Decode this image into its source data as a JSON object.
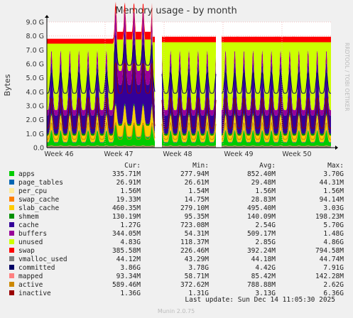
{
  "chart_data": {
    "type": "area",
    "title": "Memory usage - by month",
    "ylabel": "Bytes",
    "ylim": [
      0,
      9.0
    ],
    "yunit": "G",
    "y_ticks": [
      "0.0",
      "1.0 G",
      "2.0 G",
      "3.0 G",
      "4.0 G",
      "5.0 G",
      "6.0 G",
      "7.0 G",
      "8.0 G",
      "9.0 G"
    ],
    "x_ticks": [
      "Week 46",
      "Week 47",
      "Week 48",
      "Week 49",
      "Week 50"
    ],
    "side_text": "RRDTOOL / TOBI OETIKER",
    "footer": "Munin 2.0.75",
    "last_update": "Last update: Sun Dec 14 11:05:30 2025",
    "columns": [
      "Cur:",
      "Min:",
      "Avg:",
      "Max:"
    ],
    "series": [
      {
        "name": "apps",
        "color": "#00cc00",
        "values": [
          "335.71M",
          "277.94M",
          "852.40M",
          "3.70G"
        ]
      },
      {
        "name": "page_tables",
        "color": "#0066b3",
        "values": [
          "26.91M",
          "26.61M",
          "29.48M",
          "44.31M"
        ]
      },
      {
        "name": "per_cpu",
        "color": "#ffeb99",
        "values": [
          "1.56M",
          "1.54M",
          "1.56M",
          "1.56M"
        ]
      },
      {
        "name": "swap_cache",
        "color": "#ff8000",
        "values": [
          "19.33M",
          "14.75M",
          "28.83M",
          "94.14M"
        ]
      },
      {
        "name": "slab_cache",
        "color": "#ffcc00",
        "values": [
          "460.35M",
          "279.10M",
          "495.40M",
          "3.03G"
        ]
      },
      {
        "name": "shmem",
        "color": "#008f00",
        "values": [
          "130.19M",
          "95.35M",
          "140.09M",
          "198.23M"
        ]
      },
      {
        "name": "cache",
        "color": "#330099",
        "values": [
          "1.27G",
          "723.08M",
          "2.54G",
          "5.70G"
        ]
      },
      {
        "name": "buffers",
        "color": "#990099",
        "values": [
          "344.05M",
          "54.31M",
          "509.17M",
          "1.48G"
        ]
      },
      {
        "name": "unused",
        "color": "#ccff00",
        "values": [
          "4.83G",
          "118.37M",
          "2.85G",
          "4.86G"
        ]
      },
      {
        "name": "swap",
        "color": "#ff0000",
        "values": [
          "385.58M",
          "226.46M",
          "392.24M",
          "794.58M"
        ]
      },
      {
        "name": "vmalloc_used",
        "color": "#808080",
        "values": [
          "44.12M",
          "43.29M",
          "44.18M",
          "44.74M"
        ]
      },
      {
        "name": "committed",
        "color": "#000066",
        "values": [
          "3.86G",
          "3.78G",
          "4.42G",
          "7.91G"
        ]
      },
      {
        "name": "mapped",
        "color": "#ff8080",
        "values": [
          "93.34M",
          "58.71M",
          "85.42M",
          "142.28M"
        ]
      },
      {
        "name": "active",
        "color": "#cc8800",
        "values": [
          "589.46M",
          "372.62M",
          "788.88M",
          "2.62G"
        ]
      },
      {
        "name": "inactive",
        "color": "#990000",
        "values": [
          "1.36G",
          "1.31G",
          "3.13G",
          "6.36G"
        ]
      }
    ]
  }
}
